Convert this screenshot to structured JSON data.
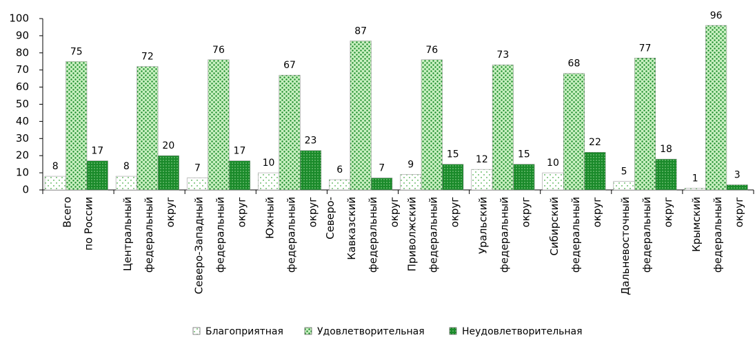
{
  "chart_data": {
    "type": "bar",
    "categories": [
      [
        "Всего",
        "по России"
      ],
      [
        "Центральный",
        "федеральный",
        "округ"
      ],
      [
        "Северо-Западный",
        "федеральный",
        "округ"
      ],
      [
        "Южный",
        "федеральный",
        "округ"
      ],
      [
        "Северо-",
        "Кавказский",
        "федеральный",
        "округ"
      ],
      [
        "Приволжский",
        "федеральный",
        "округ"
      ],
      [
        "Уральский",
        "федеральный",
        "округ"
      ],
      [
        "Сибирский",
        "федеральный",
        "округ"
      ],
      [
        "Дальневосточный",
        "федеральный",
        "округ"
      ],
      [
        "Крымский",
        "федеральный",
        "округ"
      ]
    ],
    "series": [
      {
        "name": "Благоприятная",
        "color": "#ffffff",
        "values": [
          8,
          8,
          7,
          10,
          6,
          9,
          12,
          10,
          5,
          1
        ]
      },
      {
        "name": "Удовлетворительная",
        "color": "#c8f0c0",
        "values": [
          75,
          72,
          76,
          67,
          87,
          76,
          73,
          68,
          77,
          96
        ]
      },
      {
        "name": "Неудовлетворительная",
        "color": "#1a8a2a",
        "values": [
          17,
          20,
          17,
          23,
          7,
          15,
          15,
          22,
          18,
          3
        ]
      }
    ],
    "ylim": [
      0,
      100
    ],
    "yticks": [
      0,
      10,
      20,
      30,
      40,
      50,
      60,
      70,
      80,
      90,
      100
    ],
    "grid": false,
    "legend": "bottom"
  }
}
